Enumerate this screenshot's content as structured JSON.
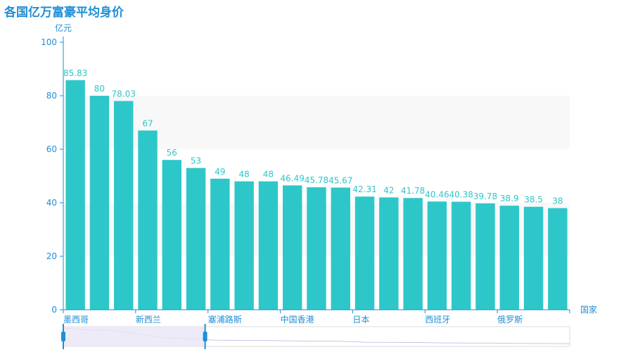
{
  "colors": {
    "bar": "#2ec7c9",
    "axis": "#1f8fd6",
    "title": "#1f8fd6",
    "band": "#f8f8f8",
    "zoomFill": "#e8e6f6",
    "zoomHandle": "#1f8fd6"
  },
  "chart_data": {
    "type": "bar",
    "title": "各国亿万富豪平均身价",
    "xlabel": "国家",
    "ylabel": "亿元",
    "ylim": [
      0,
      100
    ],
    "yticks": [
      0,
      20,
      40,
      60,
      80,
      100
    ],
    "categories": [
      "墨西哥",
      "",
      "",
      "新西兰",
      "",
      "",
      "塞浦路斯",
      "",
      "",
      "中国香港",
      "",
      "",
      "日本",
      "",
      "",
      "西班牙",
      "",
      "",
      "俄罗斯",
      "",
      ""
    ],
    "values": [
      85.83,
      80,
      78.03,
      67,
      56,
      53,
      49,
      48,
      48,
      46.49,
      45.78,
      45.67,
      42.31,
      42,
      41.78,
      40.46,
      40.38,
      39.78,
      38.9,
      38.5,
      38
    ],
    "value_labels": [
      "85.83",
      "80",
      "78.03",
      "67",
      "56",
      "53",
      "49",
      "48",
      "48",
      "46.49",
      "45.78",
      "45.67",
      "42.31",
      "42",
      "41.78",
      "40.46",
      "40.38",
      "39.78",
      "38.9",
      "38.5",
      "38"
    ],
    "grid": true,
    "dataZoom": {
      "start_fraction": 0,
      "end_fraction": 0.28
    }
  }
}
